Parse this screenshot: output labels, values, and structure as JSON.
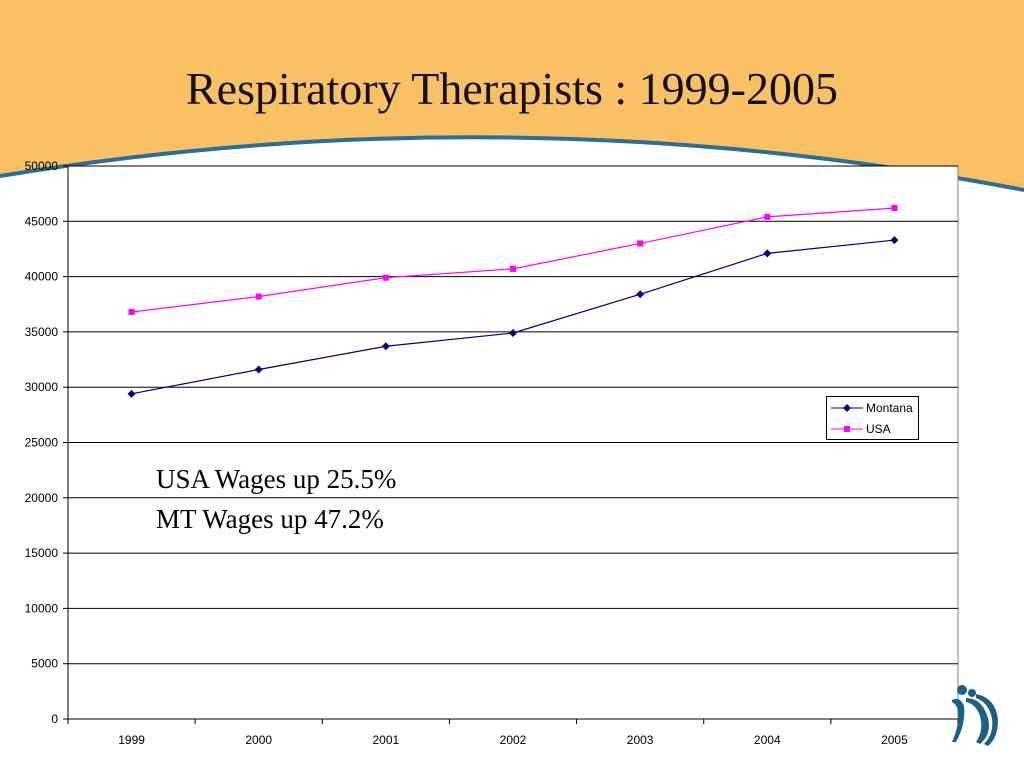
{
  "slide": {
    "title": "Respiratory Therapists : 1999-2005",
    "annotations": [
      "USA Wages up 25.5%",
      "MT Wages up 47.2%"
    ],
    "colors": {
      "header_band": "#FAC064",
      "arc_line": "#2E6D94",
      "logo": "#1E5F8A"
    },
    "logo_icon": "figures-logo-icon"
  },
  "chart_data": {
    "type": "line",
    "x": [
      "1999",
      "2000",
      "2001",
      "2002",
      "2003",
      "2004",
      "2005"
    ],
    "series": [
      {
        "name": "Montana",
        "values": [
          29400,
          31600,
          33700,
          34900,
          38400,
          42100,
          43300
        ],
        "color": "#000080",
        "marker": "diamond"
      },
      {
        "name": "USA",
        "values": [
          36800,
          38200,
          39900,
          40700,
          43000,
          45400,
          46200
        ],
        "color": "#FF00FF",
        "marker": "square"
      }
    ],
    "yticks": [
      "0",
      "5000",
      "10000",
      "15000",
      "20000",
      "25000",
      "30000",
      "35000",
      "40000",
      "45000",
      "50000"
    ],
    "ylim": [
      0,
      50000
    ],
    "grid": "horizontal",
    "legend_position": "right"
  }
}
